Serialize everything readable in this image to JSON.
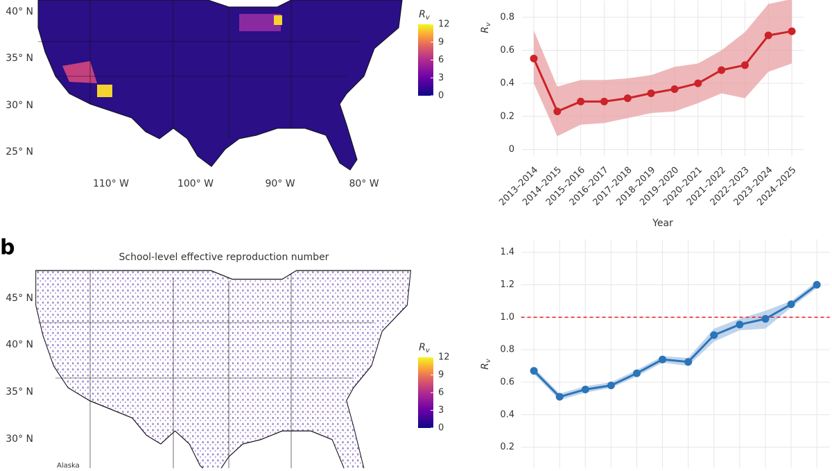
{
  "map_a": {
    "lat_labels": [
      "40° N",
      "35° N",
      "30° N",
      "25° N"
    ],
    "lon_labels": [
      "110° W",
      "100° W",
      "90° W",
      "80° W"
    ],
    "colorbar": {
      "title": {
        "main": "R",
        "sub": "v"
      },
      "ticks": [
        12,
        9,
        6,
        3,
        0
      ],
      "range": [
        0,
        12
      ]
    }
  },
  "map_b": {
    "panel": "b",
    "title": "School-level effective reproduction number",
    "lat_labels": [
      "45° N",
      "40° N",
      "35° N",
      "30° N"
    ],
    "inset_label": "Alaska",
    "colorbar": {
      "title": {
        "main": "R",
        "sub": "v"
      },
      "ticks": [
        12,
        9,
        6,
        3,
        0
      ],
      "range": [
        0,
        12
      ]
    }
  },
  "chart_data": [
    {
      "type": "line",
      "xlabel": "Year",
      "ylabel": {
        "main": "R",
        "sub": "v"
      },
      "categories": [
        "2013–2014",
        "2014–2015",
        "2015–2016",
        "2016–2017",
        "2017–2018",
        "2018–2019",
        "2019–2020",
        "2020–2021",
        "2021–2022",
        "2022–2023",
        "2023–2024",
        "2024–2025"
      ],
      "values": [
        0.55,
        0.23,
        0.29,
        0.29,
        0.31,
        0.34,
        0.365,
        0.4,
        0.48,
        0.51,
        0.69,
        0.715
      ],
      "lower": [
        0.4,
        0.08,
        0.15,
        0.16,
        0.19,
        0.22,
        0.23,
        0.28,
        0.34,
        0.31,
        0.47,
        0.52
      ],
      "upper": [
        0.72,
        0.38,
        0.42,
        0.42,
        0.43,
        0.45,
        0.5,
        0.52,
        0.6,
        0.71,
        0.88,
        0.91
      ],
      "color": "#cc2229",
      "band_color": "#e8a0a3",
      "ylim": [
        -0.04,
        0.9
      ],
      "yticks": [
        0,
        0.2,
        0.4,
        0.6,
        0.8
      ],
      "grid": true
    },
    {
      "type": "line",
      "ylabel": {
        "main": "R",
        "sub": "v"
      },
      "categories": [
        null,
        null,
        null,
        null,
        null,
        null,
        null,
        null,
        null,
        null,
        null,
        null
      ],
      "values": [
        0.67,
        0.51,
        0.555,
        0.58,
        0.655,
        0.74,
        0.725,
        0.89,
        0.955,
        0.99,
        1.08,
        1.2
      ],
      "lower": [
        0.65,
        0.49,
        0.535,
        0.565,
        0.635,
        0.72,
        0.7,
        0.85,
        0.92,
        0.93,
        1.06,
        1.18
      ],
      "upper": [
        0.69,
        0.53,
        0.575,
        0.6,
        0.675,
        0.76,
        0.75,
        0.93,
        0.99,
        1.04,
        1.1,
        1.22
      ],
      "color": "#2b74b8",
      "band_color": "#a9c6e4",
      "reference_line": {
        "value": 1,
        "color": "#e41a1c"
      },
      "ylim": [
        0.07,
        1.48
      ],
      "yticks": [
        0.2,
        0.4,
        0.6,
        0.8,
        {
          "value": 1,
          "label": "1.0"
        },
        1.2,
        1.4
      ],
      "grid": true
    }
  ]
}
